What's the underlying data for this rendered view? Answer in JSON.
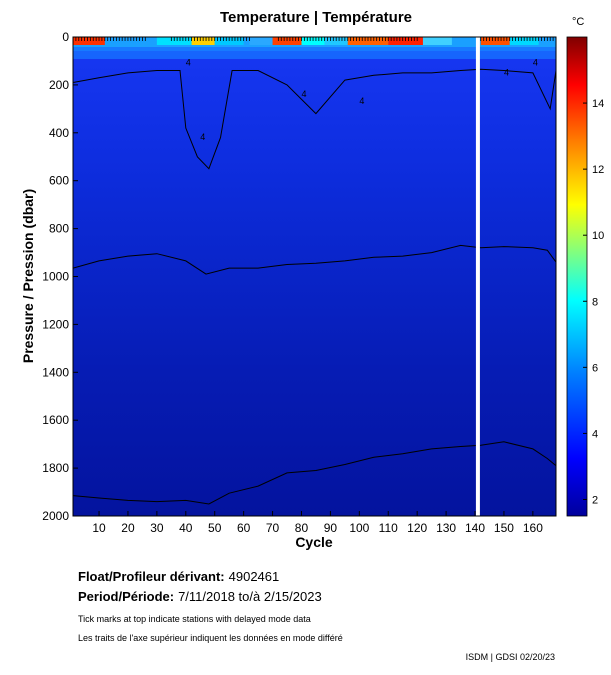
{
  "chart_data": {
    "type": "heatmap",
    "title": "Temperature | Température",
    "xlabel": "Cycle",
    "ylabel": "Pressure / Pression (dbar)",
    "x_range": [
      1,
      168
    ],
    "y_range": [
      0,
      2000
    ],
    "y_inverted": true,
    "x_ticks": [
      10,
      20,
      30,
      40,
      50,
      60,
      70,
      80,
      90,
      100,
      110,
      120,
      130,
      140,
      150,
      160
    ],
    "y_ticks": [
      0,
      200,
      400,
      600,
      800,
      1000,
      1200,
      1400,
      1600,
      1800,
      2000
    ],
    "colorbar": {
      "unit": "°C",
      "min": 1.5,
      "max": 16,
      "ticks": [
        2,
        4,
        6,
        8,
        10,
        12,
        14
      ],
      "colors": [
        "#00009c",
        "#0000ff",
        "#0080ff",
        "#00ffff",
        "#80ff80",
        "#ffff00",
        "#ff8000",
        "#ff0000",
        "#800000"
      ]
    },
    "contour_levels": [
      2,
      3,
      4,
      5,
      6,
      7,
      8,
      9,
      10
    ],
    "isotherm_3C_depth": {
      "cycles": [
        1,
        10,
        20,
        30,
        40,
        47,
        55,
        65,
        75,
        85,
        95,
        105,
        115,
        125,
        135,
        142,
        150,
        160,
        165,
        168
      ],
      "pressure": [
        965,
        935,
        915,
        905,
        935,
        990,
        965,
        965,
        950,
        945,
        935,
        920,
        915,
        900,
        870,
        880,
        875,
        880,
        890,
        940
      ]
    },
    "isotherm_2C_depth": {
      "cycles": [
        1,
        10,
        20,
        30,
        40,
        48,
        55,
        65,
        75,
        85,
        95,
        105,
        115,
        125,
        135,
        142,
        150,
        160,
        165,
        168
      ],
      "pressure": [
        1915,
        1925,
        1935,
        1940,
        1935,
        1950,
        1905,
        1875,
        1820,
        1810,
        1785,
        1755,
        1740,
        1720,
        1710,
        1705,
        1690,
        1720,
        1760,
        1790
      ]
    },
    "isotherm_4C_depth": {
      "cycles": [
        1,
        10,
        20,
        30,
        38,
        40,
        44,
        48,
        52,
        56,
        65,
        75,
        85,
        95,
        105,
        115,
        125,
        135,
        142,
        150,
        160,
        166,
        168
      ],
      "pressure": [
        190,
        170,
        150,
        140,
        140,
        380,
        500,
        550,
        420,
        140,
        140,
        200,
        320,
        180,
        160,
        150,
        150,
        140,
        135,
        140,
        150,
        300,
        140
      ]
    },
    "data_gap_cycle": 141,
    "delayed_mode_ranges": [
      [
        1,
        26
      ],
      [
        35,
        62
      ],
      [
        72,
        120
      ],
      [
        142,
        168
      ]
    ]
  },
  "info": {
    "float_label": "Float/Profileur dérivant:",
    "float_id": "4902461",
    "period_label": "Period/Période:",
    "period_value": "7/11/2018  to/à  2/15/2023",
    "note_en": "Tick marks at top indicate stations with delayed mode data",
    "note_fr": "Les traits de l'axe supérieur indiquent les données en mode différé",
    "credit": "ISDM | GDSI  02/20/23"
  }
}
